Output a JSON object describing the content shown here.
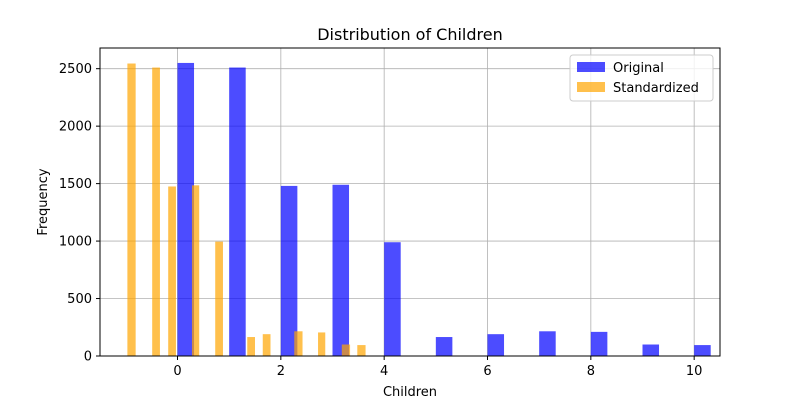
{
  "chart_data": {
    "type": "bar",
    "title": "Distribution of Children",
    "xlabel": "Children",
    "ylabel": "Frequency",
    "xlim": [
      -1.5,
      10.5
    ],
    "ylim": [
      0,
      2680
    ],
    "xticks": [
      0,
      2,
      4,
      6,
      8,
      10
    ],
    "yticks": [
      0,
      500,
      1000,
      1500,
      2000,
      2500
    ],
    "grid": true,
    "legend_position": "top-right",
    "series": [
      {
        "name": "Original",
        "color": "#0000ff",
        "bars": [
          {
            "x": 0.0,
            "x_end": 0.32,
            "value": 2550
          },
          {
            "x": 1.0,
            "x_end": 1.32,
            "value": 2510
          },
          {
            "x": 2.0,
            "x_end": 2.32,
            "value": 1480
          },
          {
            "x": 3.0,
            "x_end": 3.32,
            "value": 1490
          },
          {
            "x": 4.0,
            "x_end": 4.32,
            "value": 990
          },
          {
            "x": 5.0,
            "x_end": 5.32,
            "value": 165
          },
          {
            "x": 6.0,
            "x_end": 6.32,
            "value": 190
          },
          {
            "x": 7.0,
            "x_end": 7.32,
            "value": 215
          },
          {
            "x": 8.0,
            "x_end": 8.32,
            "value": 210
          },
          {
            "x": 9.0,
            "x_end": 9.32,
            "value": 100
          },
          {
            "x": 10.0,
            "x_end": 10.32,
            "value": 95
          }
        ]
      },
      {
        "name": "Standardized",
        "color": "#ffa500",
        "bars": [
          {
            "x": -0.97,
            "x_end": -0.81,
            "value": 2545
          },
          {
            "x": -0.49,
            "x_end": -0.34,
            "value": 2510
          },
          {
            "x": -0.18,
            "x_end": -0.03,
            "value": 1475
          },
          {
            "x": 0.28,
            "x_end": 0.42,
            "value": 1485
          },
          {
            "x": 0.73,
            "x_end": 0.88,
            "value": 995
          },
          {
            "x": 1.35,
            "x_end": 1.5,
            "value": 165
          },
          {
            "x": 1.65,
            "x_end": 1.8,
            "value": 190
          },
          {
            "x": 2.26,
            "x_end": 2.42,
            "value": 215
          },
          {
            "x": 2.72,
            "x_end": 2.86,
            "value": 205
          },
          {
            "x": 3.18,
            "x_end": 3.34,
            "value": 100
          },
          {
            "x": 3.48,
            "x_end": 3.64,
            "value": 95
          }
        ]
      }
    ]
  }
}
